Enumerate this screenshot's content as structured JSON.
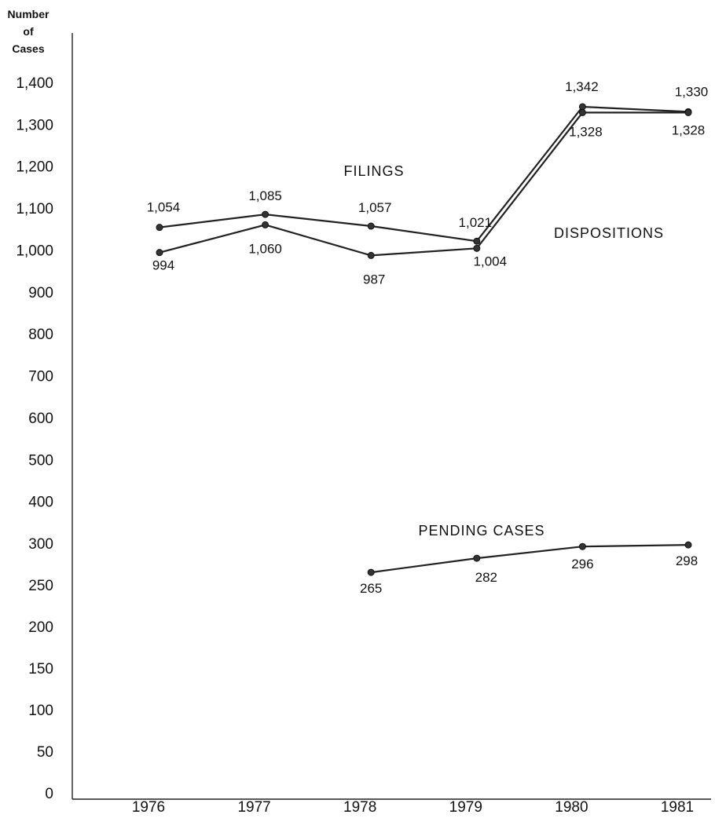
{
  "chart_data": {
    "type": "line",
    "ylabel": [
      "Number",
      "of",
      "Cases"
    ],
    "x": [
      "1976",
      "1977",
      "1978",
      "1979",
      "1980",
      "1981"
    ],
    "y_ticks": [
      "0",
      "50",
      "100",
      "150",
      "200",
      "250",
      "300",
      "400",
      "500",
      "600",
      "700",
      "800",
      "900",
      "1,000",
      "1,100",
      "1,200",
      "1,300",
      "1,400"
    ],
    "y_broken_scale": "0–300 in steps of 50; 300–1,400 in steps of 100",
    "grid": false,
    "series": [
      {
        "name": "FILINGS",
        "x": [
          "1976",
          "1977",
          "1978",
          "1979",
          "1980",
          "1981"
        ],
        "values": [
          1054,
          1085,
          1057,
          1021,
          1342,
          1330
        ],
        "labels": [
          "1,054",
          "1,085",
          "1,057",
          "1,021",
          "1,342",
          "1,330"
        ]
      },
      {
        "name": "DISPOSITIONS",
        "x": [
          "1976",
          "1977",
          "1978",
          "1979",
          "1980",
          "1981"
        ],
        "values": [
          994,
          1060,
          987,
          1004,
          1328,
          1328
        ],
        "labels": [
          "994",
          "1,060",
          "987",
          "1,004",
          "1,328",
          "1,328"
        ]
      },
      {
        "name": "PENDING CASES",
        "x": [
          "1978",
          "1979",
          "1980",
          "1981"
        ],
        "values": [
          265,
          282,
          296,
          298
        ],
        "labels": [
          "265",
          "282",
          "296",
          "298"
        ]
      }
    ]
  }
}
